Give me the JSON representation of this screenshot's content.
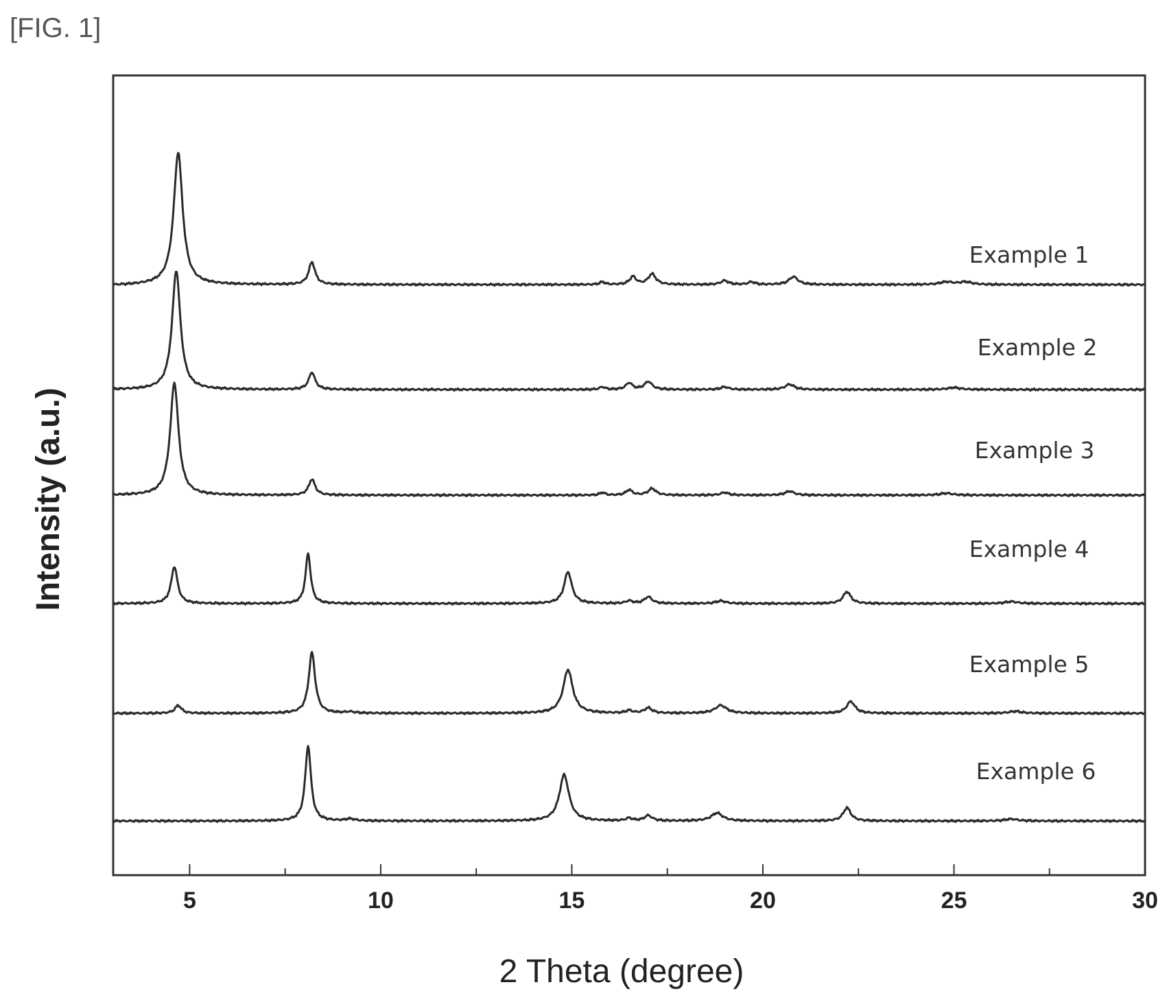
{
  "figure_label": "[FIG. 1]",
  "chart_data": {
    "type": "line",
    "xlabel": "2 Theta (degree)",
    "ylabel": "Intensity (a.u.)",
    "xlim": [
      3,
      30
    ],
    "x_ticks": [
      5,
      10,
      15,
      20,
      25,
      30
    ],
    "grid": false,
    "legend": "inline labels at right of each trace",
    "series": [
      {
        "name": "Example 1",
        "peaks": [
          {
            "x": 4.7,
            "height": 1.0,
            "width": 0.14
          },
          {
            "x": 8.2,
            "height": 0.17,
            "width": 0.1
          },
          {
            "x": 15.8,
            "height": 0.02,
            "width": 0.08
          },
          {
            "x": 16.6,
            "height": 0.06,
            "width": 0.1
          },
          {
            "x": 17.1,
            "height": 0.08,
            "width": 0.12
          },
          {
            "x": 19.0,
            "height": 0.03,
            "width": 0.12
          },
          {
            "x": 19.7,
            "height": 0.02,
            "width": 0.1
          },
          {
            "x": 20.8,
            "height": 0.06,
            "width": 0.14
          },
          {
            "x": 24.8,
            "height": 0.02,
            "width": 0.2
          },
          {
            "x": 25.3,
            "height": 0.02,
            "width": 0.2
          }
        ]
      },
      {
        "name": "Example 2",
        "peaks": [
          {
            "x": 4.65,
            "height": 0.9,
            "width": 0.13
          },
          {
            "x": 8.2,
            "height": 0.13,
            "width": 0.1
          },
          {
            "x": 15.8,
            "height": 0.02,
            "width": 0.08
          },
          {
            "x": 16.5,
            "height": 0.05,
            "width": 0.1
          },
          {
            "x": 17.0,
            "height": 0.06,
            "width": 0.12
          },
          {
            "x": 19.0,
            "height": 0.02,
            "width": 0.12
          },
          {
            "x": 20.7,
            "height": 0.04,
            "width": 0.14
          },
          {
            "x": 25.0,
            "height": 0.015,
            "width": 0.2
          }
        ]
      },
      {
        "name": "Example 3",
        "peaks": [
          {
            "x": 4.6,
            "height": 0.85,
            "width": 0.13
          },
          {
            "x": 8.2,
            "height": 0.12,
            "width": 0.1
          },
          {
            "x": 15.8,
            "height": 0.02,
            "width": 0.08
          },
          {
            "x": 16.5,
            "height": 0.04,
            "width": 0.1
          },
          {
            "x": 17.1,
            "height": 0.05,
            "width": 0.12
          },
          {
            "x": 19.0,
            "height": 0.02,
            "width": 0.12
          },
          {
            "x": 20.7,
            "height": 0.03,
            "width": 0.14
          },
          {
            "x": 24.8,
            "height": 0.015,
            "width": 0.2
          }
        ]
      },
      {
        "name": "Example 4",
        "peaks": [
          {
            "x": 4.6,
            "height": 0.28,
            "width": 0.1
          },
          {
            "x": 8.1,
            "height": 0.38,
            "width": 0.08
          },
          {
            "x": 14.9,
            "height": 0.24,
            "width": 0.12
          },
          {
            "x": 16.5,
            "height": 0.02,
            "width": 0.1
          },
          {
            "x": 17.0,
            "height": 0.05,
            "width": 0.12
          },
          {
            "x": 18.9,
            "height": 0.02,
            "width": 0.15
          },
          {
            "x": 22.2,
            "height": 0.09,
            "width": 0.12
          },
          {
            "x": 26.5,
            "height": 0.015,
            "width": 0.2
          }
        ]
      },
      {
        "name": "Example 5",
        "peaks": [
          {
            "x": 4.7,
            "height": 0.06,
            "width": 0.1
          },
          {
            "x": 8.2,
            "height": 0.46,
            "width": 0.1
          },
          {
            "x": 9.2,
            "height": 0.01,
            "width": 0.15
          },
          {
            "x": 14.9,
            "height": 0.33,
            "width": 0.15
          },
          {
            "x": 16.5,
            "height": 0.02,
            "width": 0.1
          },
          {
            "x": 17.0,
            "height": 0.04,
            "width": 0.12
          },
          {
            "x": 18.9,
            "height": 0.06,
            "width": 0.18
          },
          {
            "x": 22.3,
            "height": 0.09,
            "width": 0.13
          },
          {
            "x": 26.6,
            "height": 0.015,
            "width": 0.2
          }
        ]
      },
      {
        "name": "Example 6",
        "peaks": [
          {
            "x": 8.1,
            "height": 0.57,
            "width": 0.09
          },
          {
            "x": 9.2,
            "height": 0.015,
            "width": 0.15
          },
          {
            "x": 14.8,
            "height": 0.35,
            "width": 0.15
          },
          {
            "x": 16.5,
            "height": 0.02,
            "width": 0.1
          },
          {
            "x": 17.0,
            "height": 0.04,
            "width": 0.12
          },
          {
            "x": 18.8,
            "height": 0.06,
            "width": 0.18
          },
          {
            "x": 22.2,
            "height": 0.1,
            "width": 0.12
          },
          {
            "x": 26.5,
            "height": 0.015,
            "width": 0.2
          }
        ]
      }
    ]
  }
}
